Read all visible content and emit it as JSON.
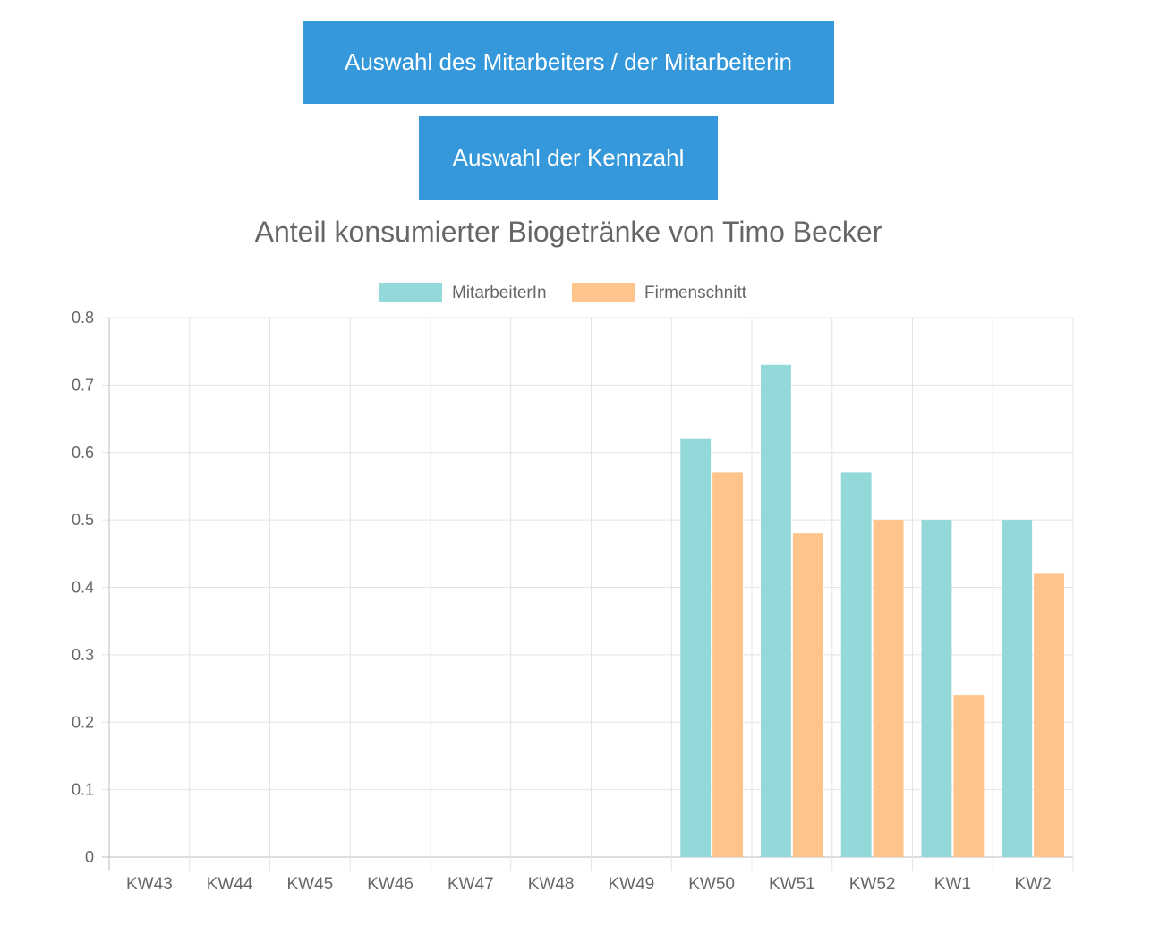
{
  "buttons": {
    "employee_label": "Auswahl des Mitarbeiters / der Mitarbeiterin",
    "metric_label": "Auswahl der Kennzahl"
  },
  "colors": {
    "button_bg": "#3498db",
    "series_employee": "#94d9d9",
    "series_company": "#ffc48c",
    "grid": "#e4e4e4",
    "text": "#666666"
  },
  "chart_data": {
    "type": "bar",
    "title": "Anteil konsumierter Biogetränke von Timo Becker",
    "categories": [
      "KW43",
      "KW44",
      "KW45",
      "KW46",
      "KW47",
      "KW48",
      "KW49",
      "KW50",
      "KW51",
      "KW52",
      "KW1",
      "KW2"
    ],
    "series": [
      {
        "name": "MitarbeiterIn",
        "values": [
          null,
          null,
          null,
          null,
          null,
          null,
          null,
          0.62,
          0.73,
          0.57,
          0.5,
          0.5
        ]
      },
      {
        "name": "Firmenschnitt",
        "values": [
          null,
          null,
          null,
          null,
          null,
          null,
          null,
          0.57,
          0.48,
          0.5,
          0.24,
          0.42
        ]
      }
    ],
    "ylim": [
      0,
      0.8
    ],
    "yticks": [
      "0",
      "0.1",
      "0.2",
      "0.3",
      "0.4",
      "0.5",
      "0.6",
      "0.7",
      "0.8"
    ],
    "grid": true,
    "legend": "top-center"
  }
}
